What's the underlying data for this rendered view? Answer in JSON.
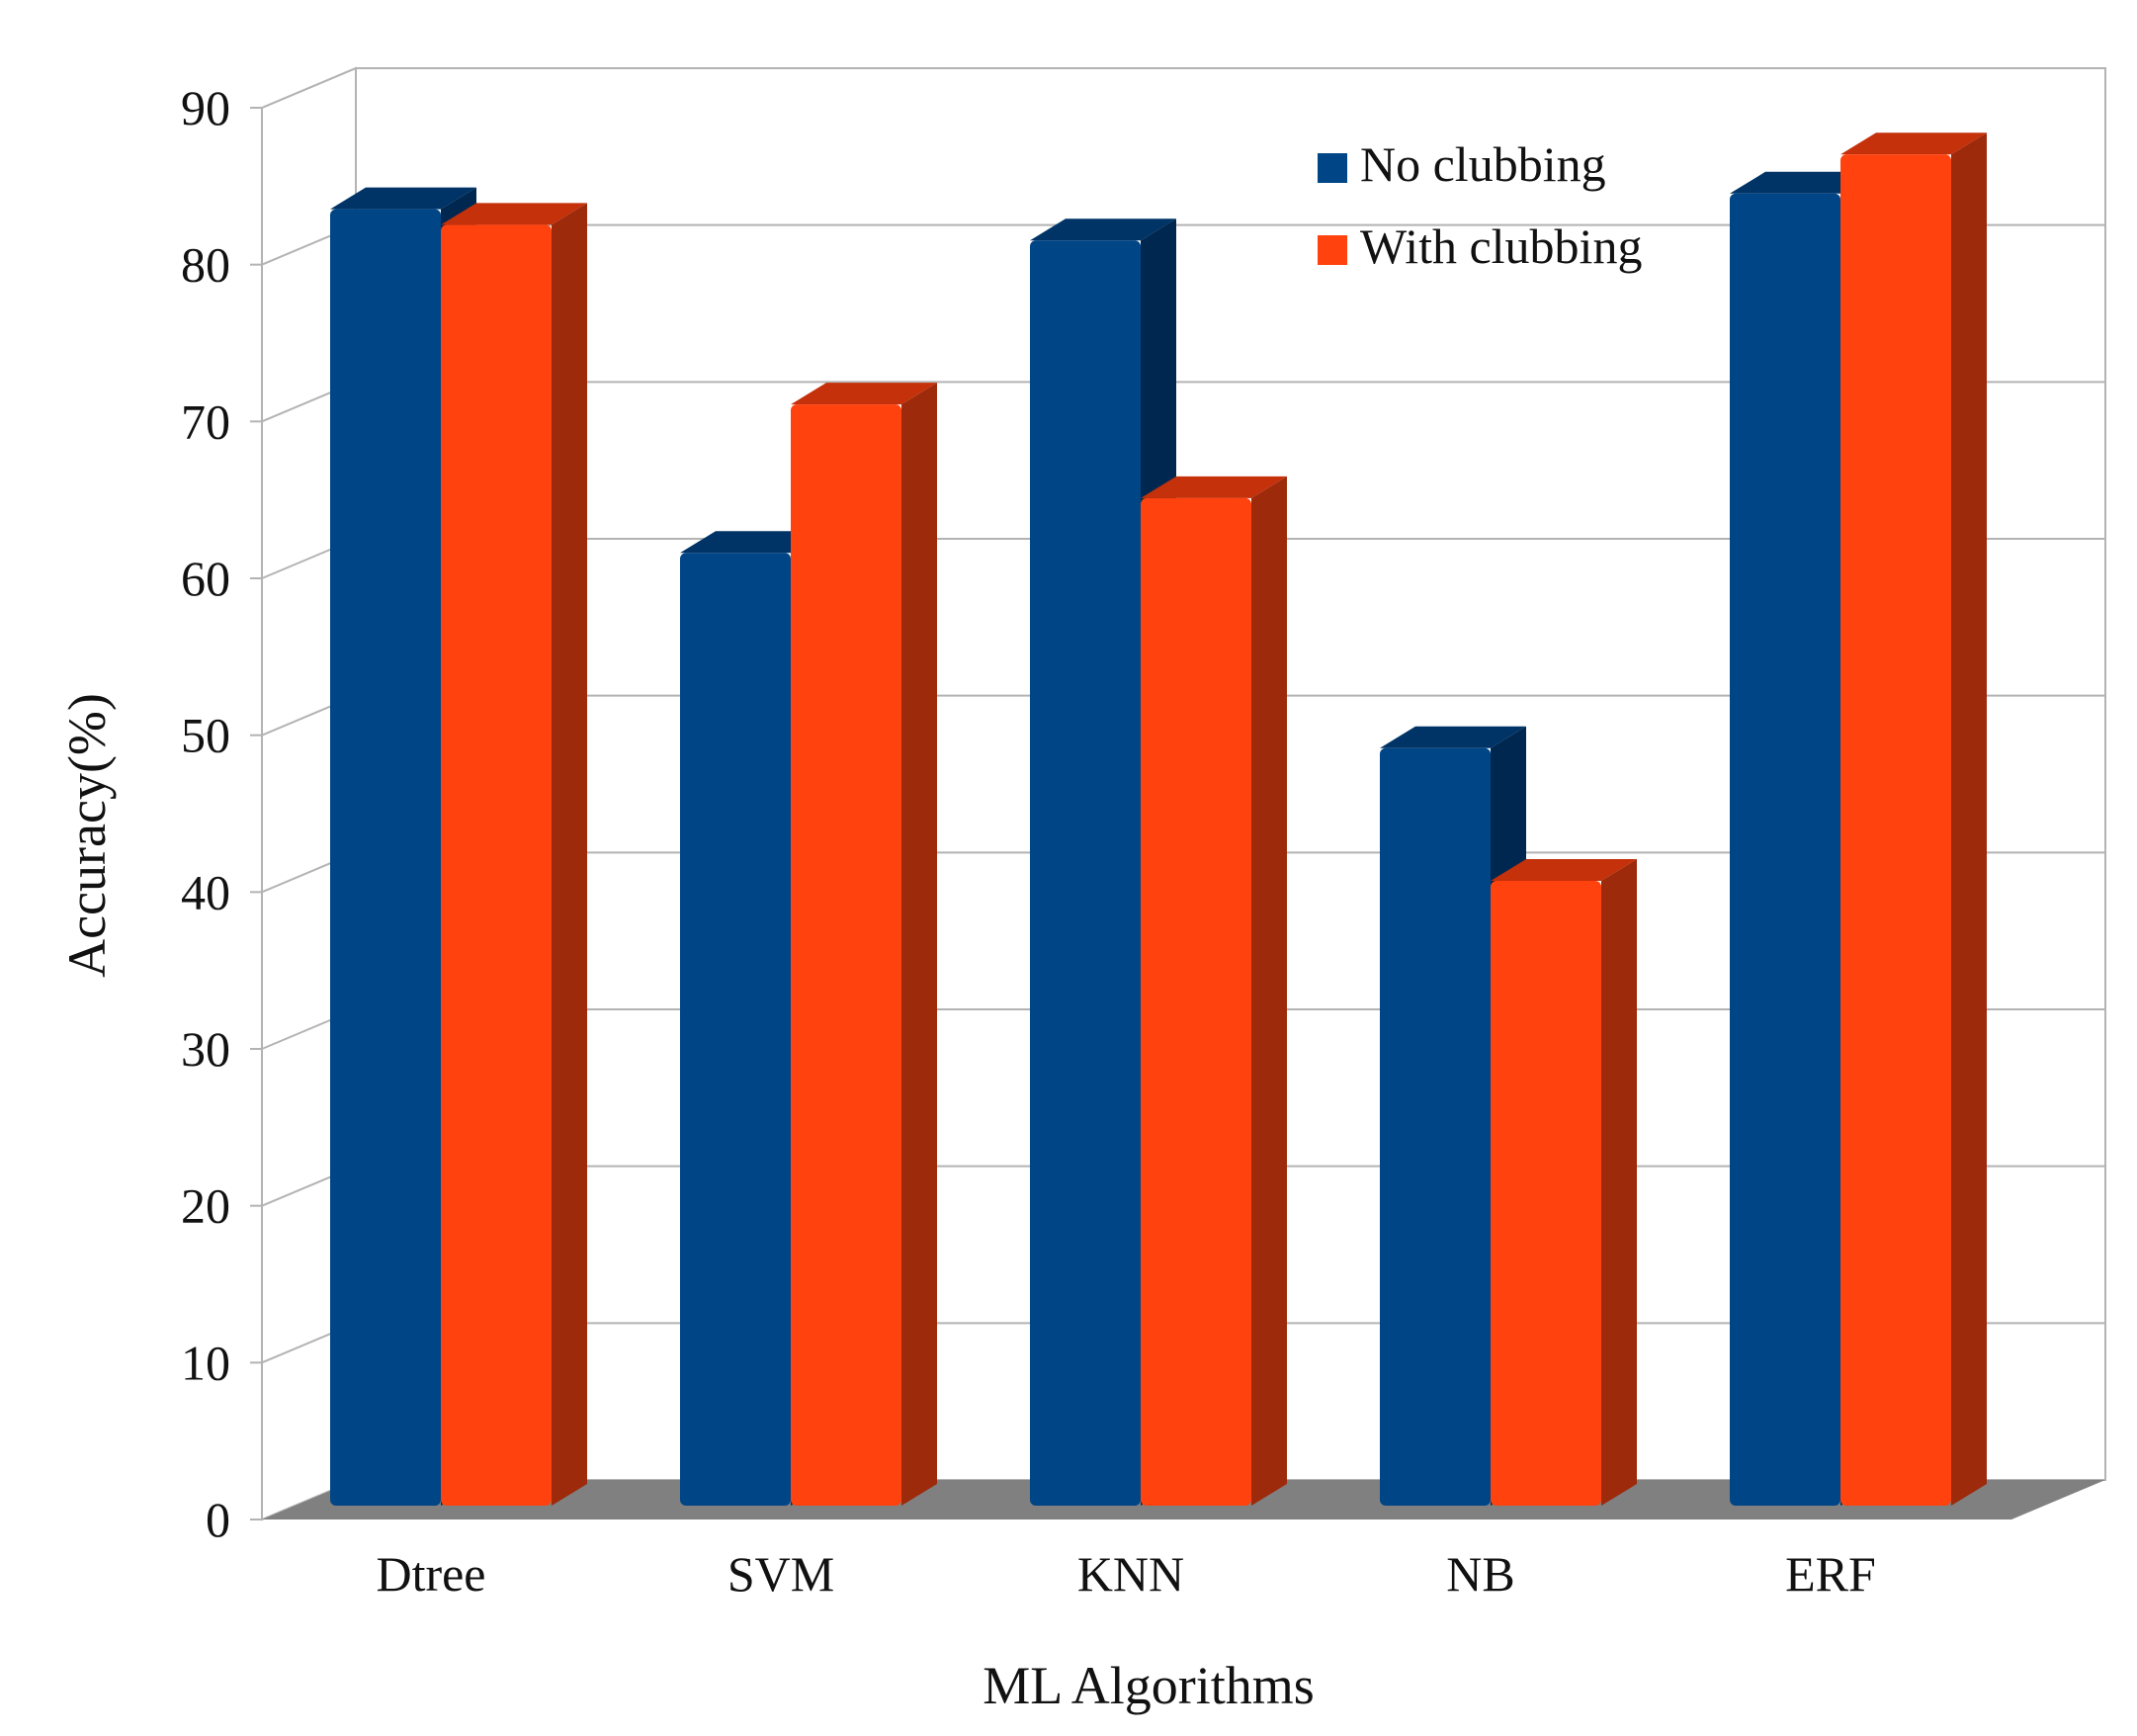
{
  "chart_data": {
    "type": "bar",
    "style": "3d-clustered-column",
    "title": "",
    "xlabel": "ML Algorithms",
    "ylabel": "Accuracy(%)",
    "ylim": [
      0,
      90
    ],
    "yticks": [
      0,
      10,
      20,
      30,
      40,
      50,
      60,
      70,
      80,
      90
    ],
    "grid": true,
    "legend_position": "top-right",
    "categories": [
      "Dtree",
      "SVM",
      "KNN",
      "NB",
      "ERF"
    ],
    "series": [
      {
        "name": "No clubbing",
        "values": [
          83,
          61,
          81,
          48.5,
          84
        ],
        "color": "#004586",
        "side_color": "#00274f",
        "top_color": "#003466"
      },
      {
        "name": "With clubbing",
        "values": [
          82,
          70.5,
          64.5,
          40,
          86.5
        ],
        "color": "#ff420e",
        "side_color": "#9c2a0b",
        "top_color": "#c4310b"
      }
    ]
  }
}
